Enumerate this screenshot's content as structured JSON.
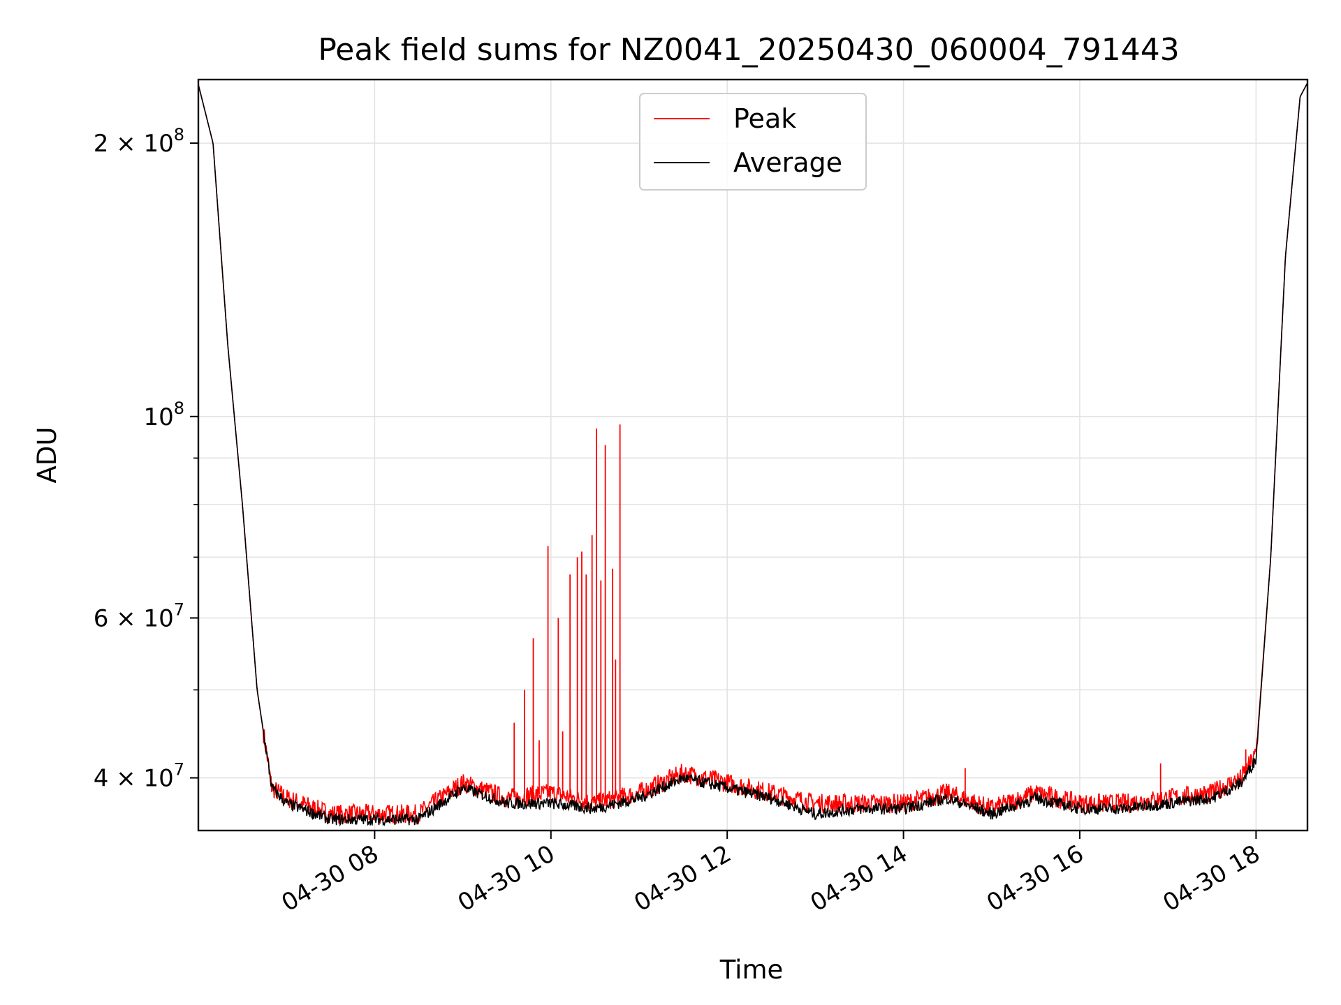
{
  "chart_data": {
    "type": "line",
    "title": "Peak field sums for NZ0041_20250430_060004_791443",
    "xlabel": "Time",
    "ylabel": "ADU",
    "y_scale": "log",
    "ylim": [
      35000000,
      235000000
    ],
    "xlim": [
      "2025-04-30T06:00",
      "2025-04-30T18:35"
    ],
    "grid": true,
    "legend_position": "top-center",
    "x_ticks": [
      {
        "t": "2025-04-30T08:00",
        "label": "04-30 08"
      },
      {
        "t": "2025-04-30T10:00",
        "label": "04-30 10"
      },
      {
        "t": "2025-04-30T12:00",
        "label": "04-30 12"
      },
      {
        "t": "2025-04-30T14:00",
        "label": "04-30 14"
      },
      {
        "t": "2025-04-30T16:00",
        "label": "04-30 16"
      },
      {
        "t": "2025-04-30T18:00",
        "label": "04-30 18"
      }
    ],
    "y_major_ticks": [
      {
        "value": 40000000,
        "base": "4",
        "exp": "7"
      },
      {
        "value": 60000000,
        "base": "6",
        "exp": "7"
      },
      {
        "value": 100000000,
        "base": "",
        "exp": "8"
      },
      {
        "value": 200000000,
        "base": "2",
        "exp": "8"
      }
    ],
    "y_minor_ticks": [
      50000000,
      70000000,
      80000000,
      90000000
    ],
    "series": [
      {
        "name": "Peak",
        "color": "#ff0000",
        "x": [
          "2025-04-30T06:00",
          "2025-04-30T06:10",
          "2025-04-30T06:20",
          "2025-04-30T06:30",
          "2025-04-30T06:40",
          "2025-04-30T06:50",
          "2025-04-30T07:00",
          "2025-04-30T07:30",
          "2025-04-30T08:00",
          "2025-04-30T08:30",
          "2025-04-30T09:00",
          "2025-04-30T09:30",
          "2025-04-30T10:00",
          "2025-04-30T10:30",
          "2025-04-30T11:00",
          "2025-04-30T11:30",
          "2025-04-30T12:00",
          "2025-04-30T12:30",
          "2025-04-30T13:00",
          "2025-04-30T13:30",
          "2025-04-30T14:00",
          "2025-04-30T14:30",
          "2025-04-30T15:00",
          "2025-04-30T15:30",
          "2025-04-30T16:00",
          "2025-04-30T16:30",
          "2025-04-30T17:00",
          "2025-04-30T17:30",
          "2025-04-30T17:50",
          "2025-04-30T18:00",
          "2025-04-30T18:10",
          "2025-04-30T18:20",
          "2025-04-30T18:30",
          "2025-04-30T18:35"
        ],
        "y": [
          232000000,
          200000000,
          120000000,
          80000000,
          50000000,
          39000000,
          38000000,
          36500000,
          36500000,
          36500000,
          39500000,
          38000000,
          38500000,
          37500000,
          38500000,
          40500000,
          39500000,
          38500000,
          37500000,
          37500000,
          37500000,
          38500000,
          37000000,
          38500000,
          37500000,
          37500000,
          38000000,
          38500000,
          40000000,
          42500000,
          70000000,
          150000000,
          225000000,
          233000000
        ]
      },
      {
        "name": "Average",
        "color": "#000000",
        "x": [
          "2025-04-30T06:00",
          "2025-04-30T06:10",
          "2025-04-30T06:20",
          "2025-04-30T06:30",
          "2025-04-30T06:40",
          "2025-04-30T06:50",
          "2025-04-30T07:00",
          "2025-04-30T07:30",
          "2025-04-30T08:00",
          "2025-04-30T08:30",
          "2025-04-30T09:00",
          "2025-04-30T09:30",
          "2025-04-30T10:00",
          "2025-04-30T10:30",
          "2025-04-30T11:00",
          "2025-04-30T11:30",
          "2025-04-30T12:00",
          "2025-04-30T12:30",
          "2025-04-30T13:00",
          "2025-04-30T13:30",
          "2025-04-30T14:00",
          "2025-04-30T14:30",
          "2025-04-30T15:00",
          "2025-04-30T15:30",
          "2025-04-30T16:00",
          "2025-04-30T16:30",
          "2025-04-30T17:00",
          "2025-04-30T17:30",
          "2025-04-30T17:50",
          "2025-04-30T18:00",
          "2025-04-30T18:10",
          "2025-04-30T18:20",
          "2025-04-30T18:30",
          "2025-04-30T18:35"
        ],
        "y": [
          232000000,
          200000000,
          120000000,
          80000000,
          50000000,
          39000000,
          37500000,
          36000000,
          36000000,
          36000000,
          39000000,
          37500000,
          37500000,
          37000000,
          38000000,
          40000000,
          39000000,
          38000000,
          36500000,
          37000000,
          37000000,
          38000000,
          36500000,
          38000000,
          37000000,
          37000000,
          37500000,
          38000000,
          39500000,
          42000000,
          70000000,
          150000000,
          225000000,
          233000000
        ]
      }
    ],
    "peak_spikes": [
      {
        "t": "2025-04-30T09:35",
        "y": 46000000
      },
      {
        "t": "2025-04-30T09:42",
        "y": 50000000
      },
      {
        "t": "2025-04-30T09:48",
        "y": 57000000
      },
      {
        "t": "2025-04-30T09:52",
        "y": 44000000
      },
      {
        "t": "2025-04-30T09:58",
        "y": 72000000
      },
      {
        "t": "2025-04-30T10:05",
        "y": 60000000
      },
      {
        "t": "2025-04-30T10:08",
        "y": 45000000
      },
      {
        "t": "2025-04-30T10:13",
        "y": 67000000
      },
      {
        "t": "2025-04-30T10:18",
        "y": 70000000
      },
      {
        "t": "2025-04-30T10:21",
        "y": 71000000
      },
      {
        "t": "2025-04-30T10:24",
        "y": 67000000
      },
      {
        "t": "2025-04-30T10:28",
        "y": 74000000
      },
      {
        "t": "2025-04-30T10:31",
        "y": 97000000
      },
      {
        "t": "2025-04-30T10:34",
        "y": 66000000
      },
      {
        "t": "2025-04-30T10:37",
        "y": 93000000
      },
      {
        "t": "2025-04-30T10:42",
        "y": 68000000
      },
      {
        "t": "2025-04-30T10:44",
        "y": 54000000
      },
      {
        "t": "2025-04-30T10:47",
        "y": 98000000
      },
      {
        "t": "2025-04-30T14:42",
        "y": 41000000
      },
      {
        "t": "2025-04-30T16:55",
        "y": 41500000
      },
      {
        "t": "2025-04-30T17:53",
        "y": 43000000
      }
    ]
  }
}
